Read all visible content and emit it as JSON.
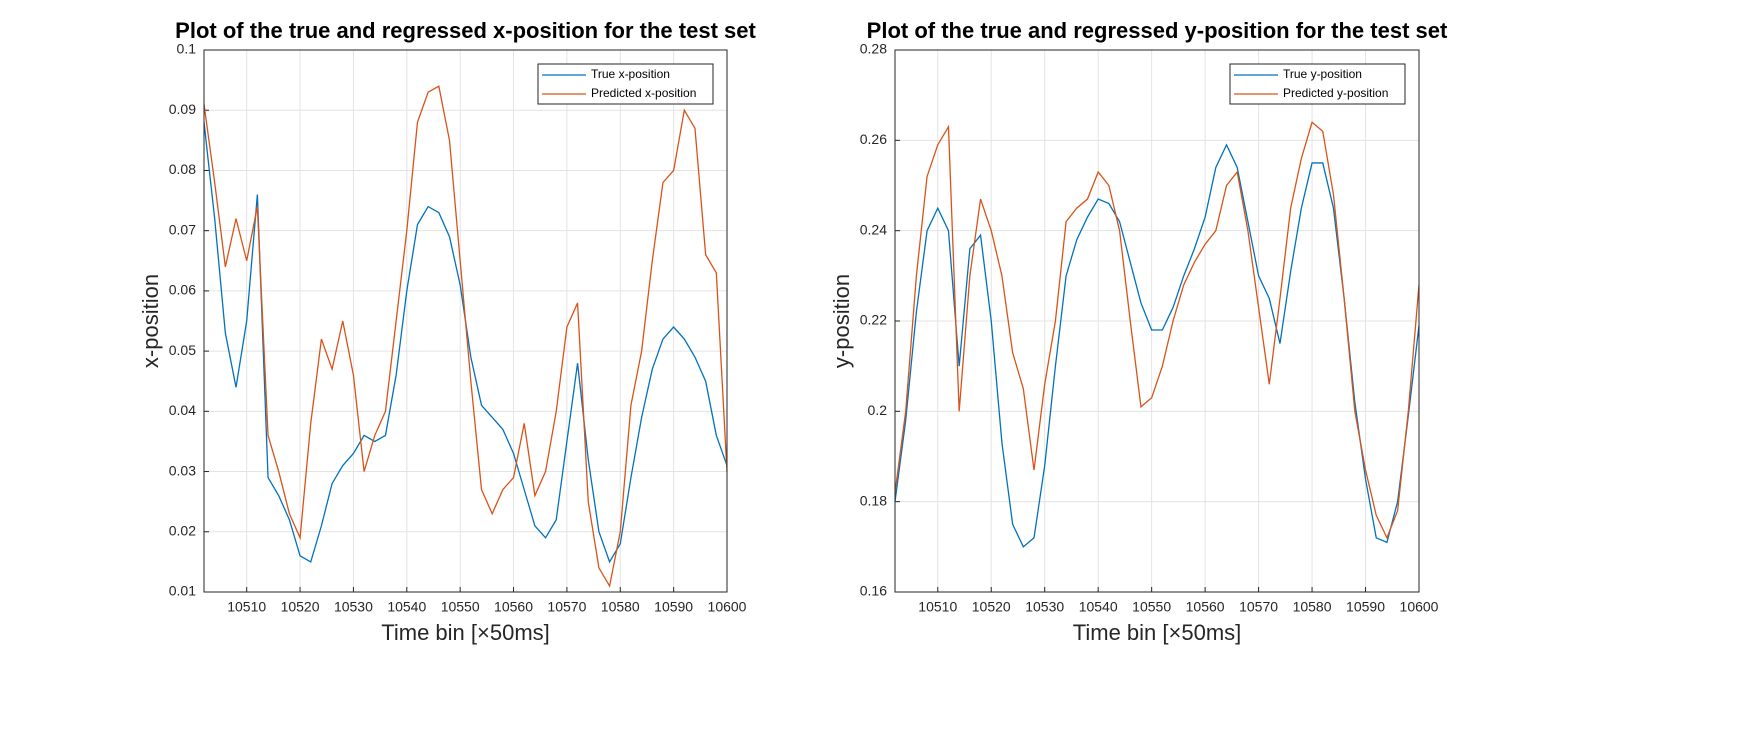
{
  "chart_data": [
    {
      "type": "line",
      "title": "Plot of the true and regressed x-position for the test set",
      "xlabel": "Time bin [×50ms]",
      "ylabel": "x-position",
      "x": [
        10502,
        10504,
        10506,
        10508,
        10510,
        10512,
        10514,
        10516,
        10518,
        10520,
        10522,
        10524,
        10526,
        10528,
        10530,
        10532,
        10534,
        10536,
        10538,
        10540,
        10542,
        10544,
        10546,
        10548,
        10550,
        10552,
        10554,
        10556,
        10558,
        10560,
        10562,
        10564,
        10566,
        10568,
        10570,
        10572,
        10574,
        10576,
        10578,
        10580,
        10582,
        10584,
        10586,
        10588,
        10590,
        10592,
        10594,
        10596,
        10598,
        10600
      ],
      "series": [
        {
          "name": "True x-position",
          "color": "#0072bd",
          "values": [
            0.088,
            0.072,
            0.053,
            0.044,
            0.055,
            0.076,
            0.029,
            0.026,
            0.022,
            0.016,
            0.015,
            0.021,
            0.028,
            0.031,
            0.033,
            0.036,
            0.035,
            0.036,
            0.046,
            0.06,
            0.071,
            0.074,
            0.073,
            0.069,
            0.061,
            0.049,
            0.041,
            0.039,
            0.037,
            0.033,
            0.027,
            0.021,
            0.019,
            0.022,
            0.035,
            0.048,
            0.032,
            0.02,
            0.015,
            0.018,
            0.029,
            0.039,
            0.047,
            0.052,
            0.054,
            0.052,
            0.049,
            0.045,
            0.036,
            0.031
          ]
        },
        {
          "name": "Predicted x-position",
          "color": "#d95319",
          "values": [
            0.091,
            0.078,
            0.064,
            0.072,
            0.065,
            0.074,
            0.036,
            0.03,
            0.023,
            0.019,
            0.038,
            0.052,
            0.047,
            0.055,
            0.046,
            0.03,
            0.036,
            0.04,
            0.055,
            0.07,
            0.088,
            0.093,
            0.094,
            0.085,
            0.065,
            0.045,
            0.027,
            0.023,
            0.027,
            0.029,
            0.038,
            0.026,
            0.03,
            0.04,
            0.054,
            0.058,
            0.025,
            0.014,
            0.011,
            0.02,
            0.041,
            0.05,
            0.065,
            0.078,
            0.08,
            0.09,
            0.087,
            0.066,
            0.063,
            0.03
          ]
        }
      ],
      "xlim": [
        10502,
        10600
      ],
      "xticks": [
        10510,
        10520,
        10530,
        10540,
        10550,
        10560,
        10570,
        10580,
        10590,
        10600
      ],
      "ylim": [
        0.01,
        0.1
      ],
      "yticks": [
        0.01,
        0.02,
        0.03,
        0.04,
        0.05,
        0.06,
        0.07,
        0.08,
        0.09,
        0.1
      ],
      "grid": true,
      "legend": "northeast"
    },
    {
      "type": "line",
      "title": "Plot of the true and regressed y-position for the test set",
      "xlabel": "Time bin [×50ms]",
      "ylabel": "y-position",
      "x": [
        10502,
        10504,
        10506,
        10508,
        10510,
        10512,
        10514,
        10516,
        10518,
        10520,
        10522,
        10524,
        10526,
        10528,
        10530,
        10532,
        10534,
        10536,
        10538,
        10540,
        10542,
        10544,
        10546,
        10548,
        10550,
        10552,
        10554,
        10556,
        10558,
        10560,
        10562,
        10564,
        10566,
        10568,
        10570,
        10572,
        10574,
        10576,
        10578,
        10580,
        10582,
        10584,
        10586,
        10588,
        10590,
        10592,
        10594,
        10596,
        10598,
        10600
      ],
      "series": [
        {
          "name": "True y-position",
          "color": "#0072bd",
          "values": [
            0.18,
            0.198,
            0.222,
            0.24,
            0.245,
            0.24,
            0.21,
            0.236,
            0.239,
            0.22,
            0.193,
            0.175,
            0.17,
            0.172,
            0.188,
            0.21,
            0.23,
            0.238,
            0.243,
            0.247,
            0.246,
            0.242,
            0.233,
            0.224,
            0.218,
            0.218,
            0.223,
            0.23,
            0.236,
            0.243,
            0.254,
            0.259,
            0.254,
            0.242,
            0.23,
            0.225,
            0.215,
            0.231,
            0.245,
            0.255,
            0.255,
            0.245,
            0.225,
            0.202,
            0.185,
            0.172,
            0.171,
            0.18,
            0.199,
            0.219
          ]
        },
        {
          "name": "Predicted y-position",
          "color": "#d95319",
          "values": [
            0.182,
            0.2,
            0.23,
            0.252,
            0.259,
            0.263,
            0.2,
            0.23,
            0.247,
            0.24,
            0.23,
            0.213,
            0.205,
            0.187,
            0.206,
            0.22,
            0.242,
            0.245,
            0.247,
            0.253,
            0.25,
            0.24,
            0.22,
            0.201,
            0.203,
            0.21,
            0.22,
            0.228,
            0.233,
            0.237,
            0.24,
            0.25,
            0.253,
            0.24,
            0.223,
            0.206,
            0.225,
            0.245,
            0.256,
            0.264,
            0.262,
            0.248,
            0.225,
            0.2,
            0.187,
            0.177,
            0.172,
            0.178,
            0.2,
            0.228
          ]
        }
      ],
      "xlim": [
        10502,
        10600
      ],
      "xticks": [
        10510,
        10520,
        10530,
        10540,
        10550,
        10560,
        10570,
        10580,
        10590,
        10600
      ],
      "ylim": [
        0.16,
        0.28
      ],
      "yticks": [
        0.16,
        0.18,
        0.2,
        0.22,
        0.24,
        0.26,
        0.28
      ],
      "grid": true,
      "legend": "northeast"
    }
  ]
}
